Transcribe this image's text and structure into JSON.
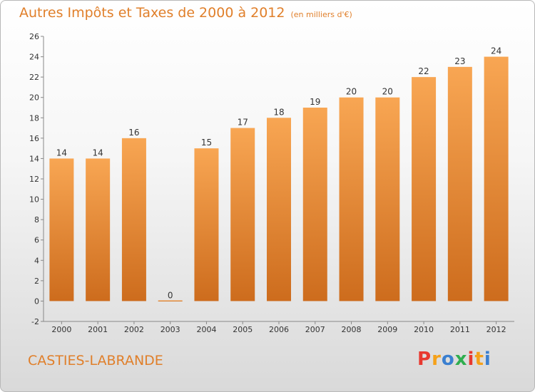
{
  "title": "Autres Impôts et Taxes de 2000 à 2012",
  "unit": "(en milliers d'€)",
  "city": "CASTIES-LABRANDE",
  "logo": {
    "text": "Proxiti",
    "colors": [
      "#e8392f",
      "#f5a11a",
      "#3a7fd0",
      "#2fae4f",
      "#e8392f",
      "#f5a11a",
      "#3a7fd0"
    ]
  },
  "colors": {
    "accent": "#e07f2a",
    "bar_light": "#f8a653",
    "bar_dark": "#cd6c1d"
  },
  "chart_data": {
    "type": "bar",
    "categories": [
      "2000",
      "2001",
      "2002",
      "2003",
      "2004",
      "2005",
      "2006",
      "2007",
      "2008",
      "2009",
      "2010",
      "2011",
      "2012"
    ],
    "values": [
      14,
      14,
      16,
      0,
      15,
      17,
      18,
      19,
      20,
      20,
      22,
      23,
      24
    ],
    "ylim": [
      -2,
      26
    ],
    "yticks": [
      -2,
      0,
      2,
      4,
      6,
      8,
      10,
      12,
      14,
      16,
      18,
      20,
      22,
      24,
      26
    ],
    "grid": false,
    "legend": false,
    "title": "Autres Impôts et Taxes de 2000 à 2012",
    "xlabel": "",
    "ylabel": ""
  }
}
